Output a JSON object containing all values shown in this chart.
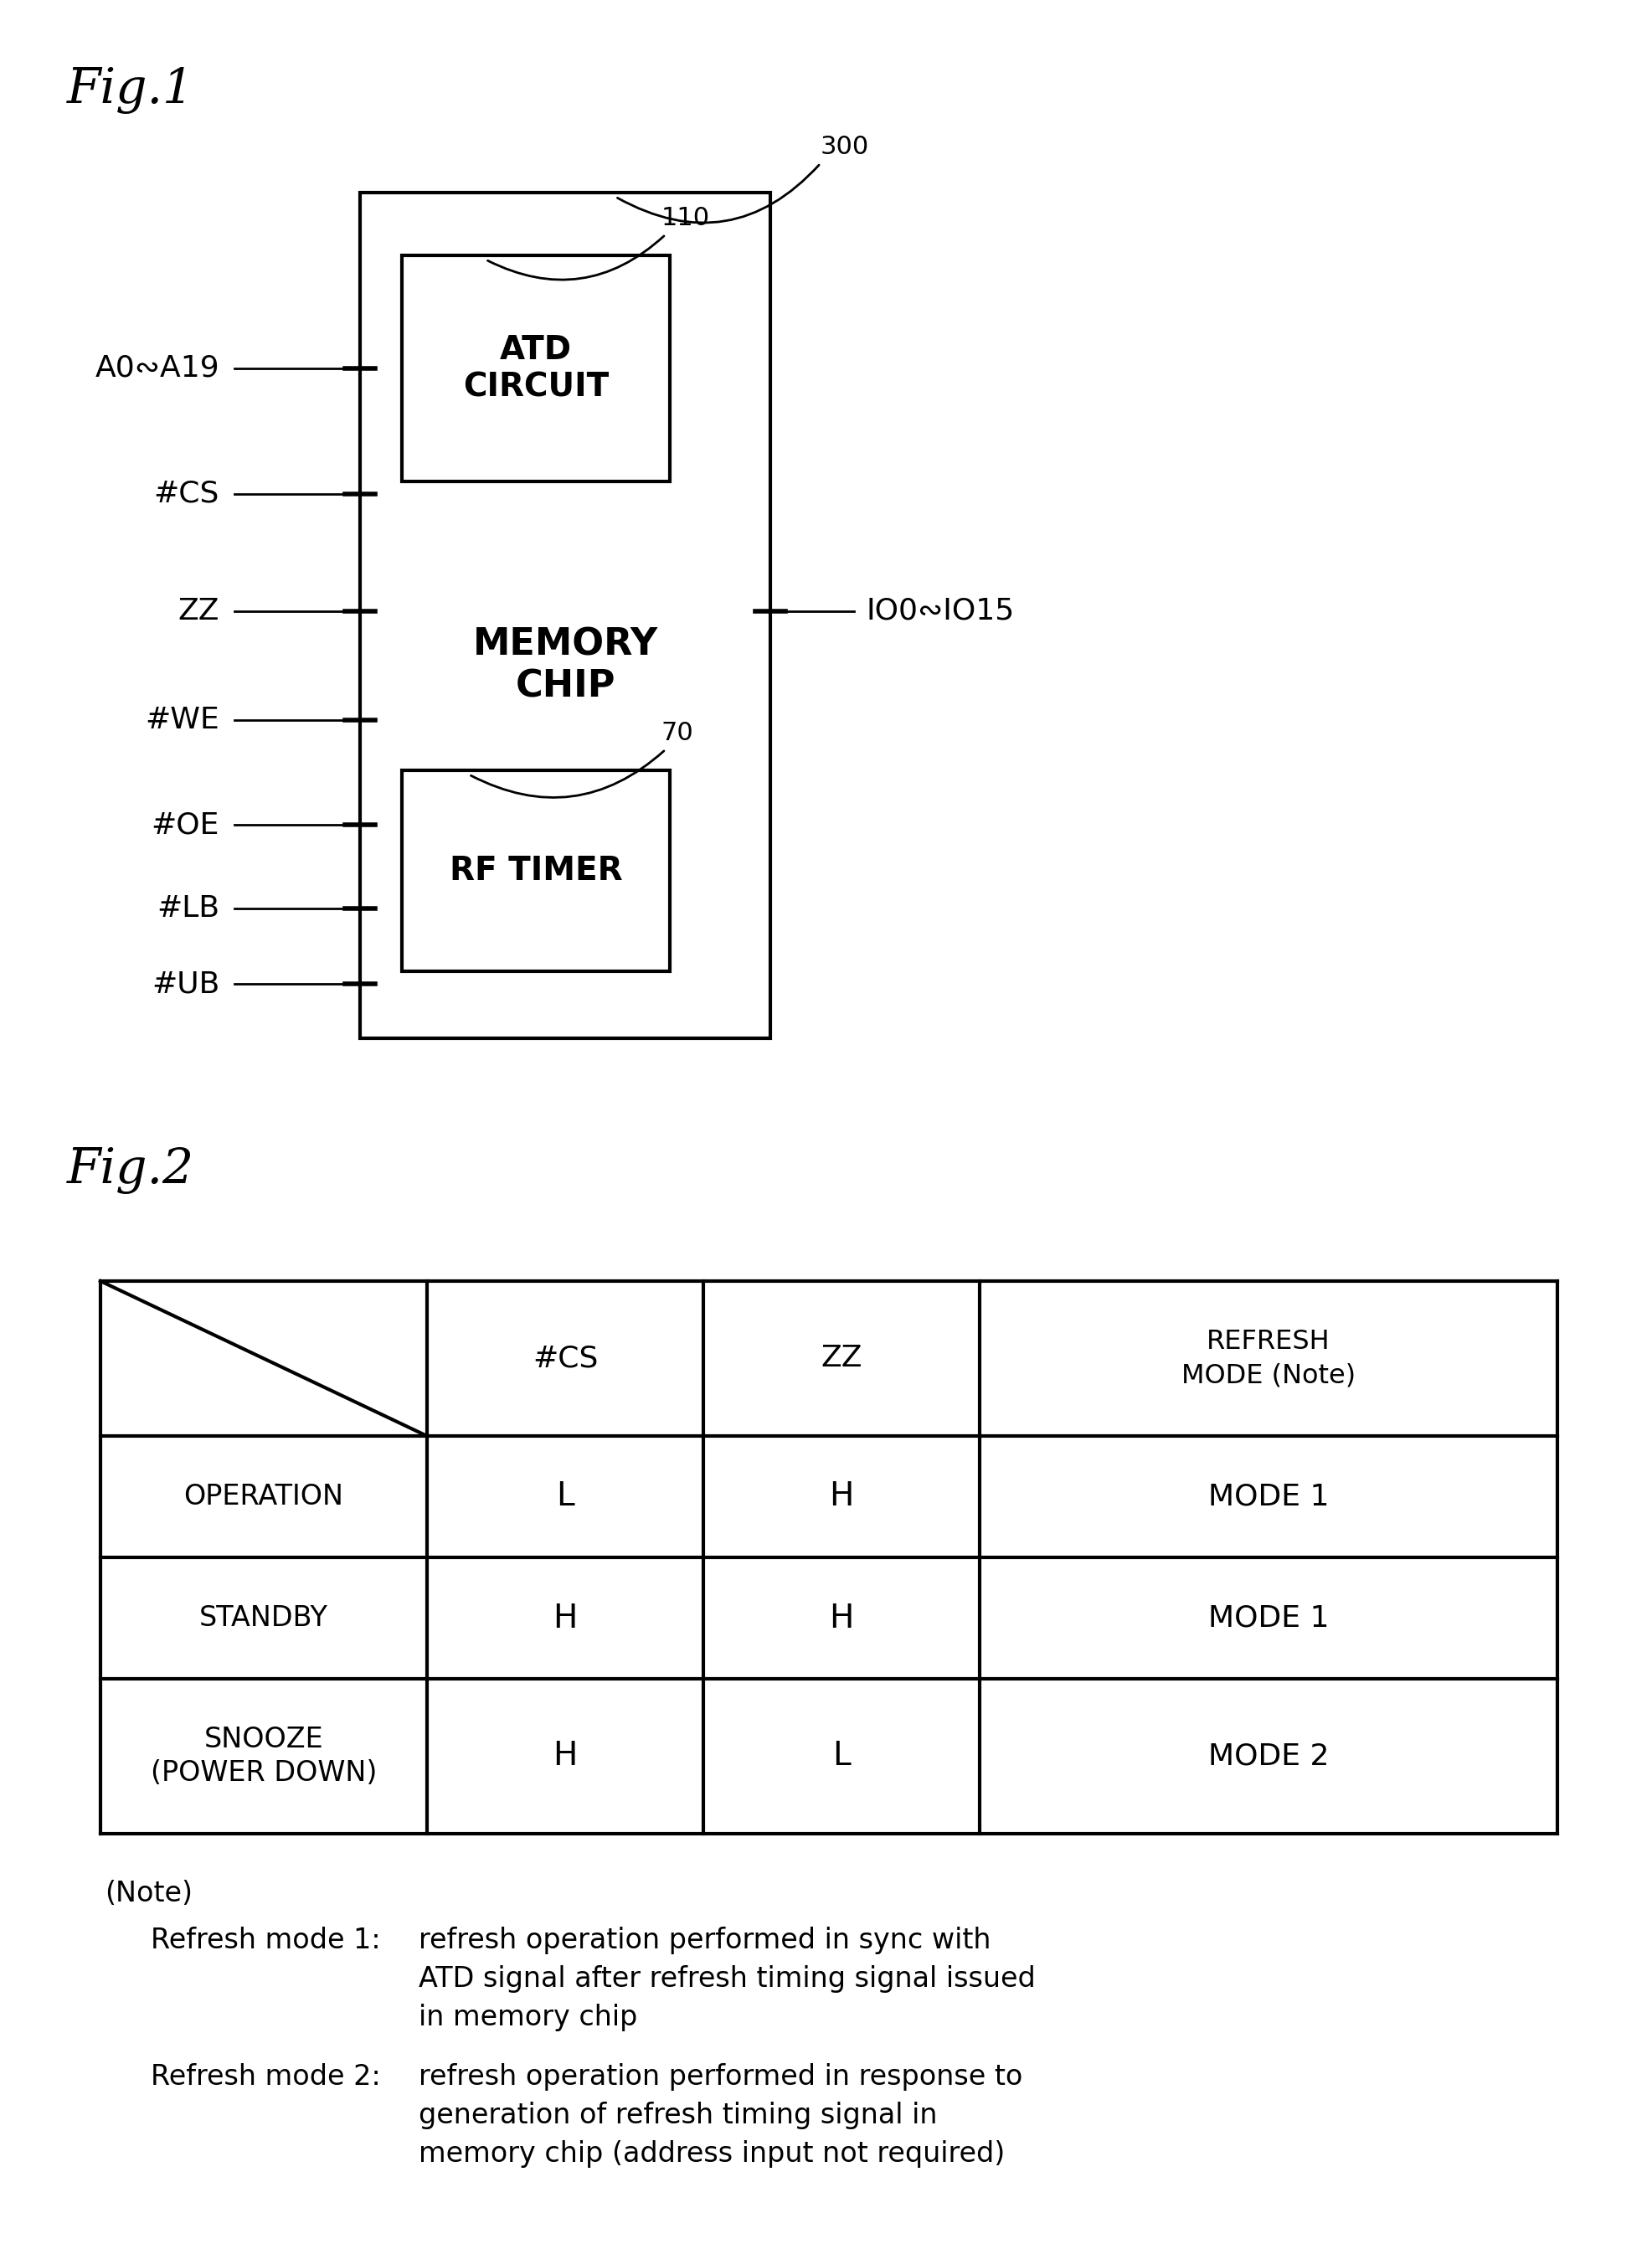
{
  "fig1_title": "Fig.1",
  "fig2_title": "Fig.2",
  "background_color": "#ffffff",
  "text_color": "#000000",
  "line_color": "#000000",
  "chip_label_line1": "MEMORY",
  "chip_label_line2": "CHIP",
  "atd_label_line1": "ATD",
  "atd_label_line2": "CIRCUIT",
  "rf_timer_label": "RF TIMER",
  "chip_ref": "300",
  "atd_ref": "110",
  "rf_ref": "70",
  "io_label": "IO0∾IO15",
  "inputs": [
    "A0∾A19",
    "#CS",
    "ZZ",
    "#WE",
    "#OE",
    "#LB",
    "#UB"
  ],
  "table_col_headers": [
    "#CS",
    "ZZ",
    "REFRESH\nMODE (Note)"
  ],
  "table_rows": [
    [
      "OPERATION",
      "L",
      "H",
      "MODE 1"
    ],
    [
      "STANDBY",
      "H",
      "H",
      "MODE 1"
    ],
    [
      "SNOOZE\n(POWER DOWN)",
      "H",
      "L",
      "MODE 2"
    ]
  ],
  "note_title": "(Note)",
  "note1_label": "Refresh mode 1:",
  "note1_lines": [
    "refresh operation performed in sync with",
    "ATD signal after refresh timing signal issued",
    "in memory chip"
  ],
  "note2_label": "Refresh mode 2:",
  "note2_lines": [
    "refresh operation performed in response to",
    "generation of refresh timing signal in",
    "memory chip (address input not required)"
  ]
}
